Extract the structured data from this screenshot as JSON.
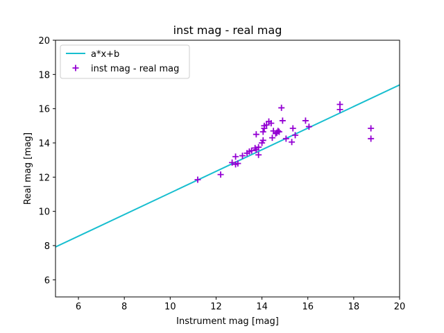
{
  "chart_data": {
    "type": "scatter",
    "title": "inst mag - real mag",
    "xlabel": "Instrument mag [mag]",
    "ylabel": "Real mag [mag]",
    "xlim": [
      5,
      20
    ],
    "ylim": [
      5,
      20
    ],
    "xticks": [
      6,
      8,
      10,
      12,
      14,
      16,
      18,
      20
    ],
    "yticks": [
      6,
      8,
      10,
      12,
      14,
      16,
      18,
      20
    ],
    "grid": false,
    "legend_position": "top-left",
    "fit_line": {
      "name": "a*x+b",
      "color": "#17becf",
      "x": [
        5,
        20
      ],
      "y": [
        7.92,
        17.39
      ]
    },
    "series": [
      {
        "name": "inst mag - real mag",
        "color": "#9400d3",
        "marker": "plus",
        "points": [
          [
            11.2,
            11.85
          ],
          [
            12.2,
            12.15
          ],
          [
            12.7,
            12.85
          ],
          [
            12.85,
            12.75
          ],
          [
            12.85,
            13.2
          ],
          [
            12.95,
            12.8
          ],
          [
            13.15,
            13.25
          ],
          [
            13.35,
            13.4
          ],
          [
            13.45,
            13.5
          ],
          [
            13.55,
            13.55
          ],
          [
            13.7,
            13.7
          ],
          [
            13.75,
            13.6
          ],
          [
            13.75,
            14.5
          ],
          [
            13.85,
            13.3
          ],
          [
            13.85,
            13.75
          ],
          [
            14.0,
            14.0
          ],
          [
            14.05,
            14.15
          ],
          [
            14.05,
            14.65
          ],
          [
            14.1,
            14.85
          ],
          [
            14.1,
            15.0
          ],
          [
            14.2,
            15.05
          ],
          [
            14.3,
            15.25
          ],
          [
            14.4,
            15.15
          ],
          [
            14.45,
            14.3
          ],
          [
            14.5,
            14.7
          ],
          [
            14.6,
            14.55
          ],
          [
            14.65,
            14.6
          ],
          [
            14.7,
            14.7
          ],
          [
            14.75,
            14.65
          ],
          [
            14.85,
            16.05
          ],
          [
            14.9,
            15.3
          ],
          [
            15.05,
            14.25
          ],
          [
            15.3,
            14.05
          ],
          [
            15.35,
            14.85
          ],
          [
            15.45,
            14.45
          ],
          [
            15.9,
            15.3
          ],
          [
            16.05,
            14.95
          ],
          [
            17.4,
            16.25
          ],
          [
            17.4,
            15.95
          ],
          [
            18.75,
            14.85
          ],
          [
            18.75,
            14.25
          ]
        ]
      }
    ]
  }
}
